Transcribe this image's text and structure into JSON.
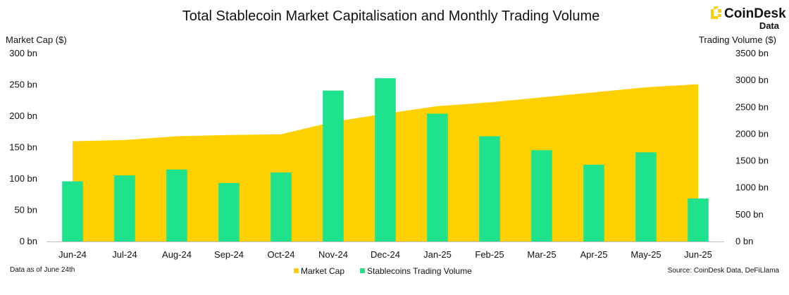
{
  "chart_data": {
    "type": "bar",
    "title": "Total Stablecoin Market Capitalisation and Monthly Trading Volume",
    "categories": [
      "Jun-24",
      "Jul-24",
      "Aug-24",
      "Sep-24",
      "Oct-24",
      "Nov-24",
      "Dec-24",
      "Jan-25",
      "Feb-25",
      "Mar-25",
      "Apr-25",
      "May-25",
      "Jun-25"
    ],
    "y_left": {
      "label": "Market Cap ($)",
      "ylim": [
        0,
        300
      ],
      "ticks": [
        "0 bn",
        "50 bn",
        "100 bn",
        "150 bn",
        "200 bn",
        "250 bn",
        "300 bn"
      ]
    },
    "y_right": {
      "label": "Trading Volume ($)",
      "ylim": [
        0,
        3500
      ],
      "ticks": [
        "0 bn",
        "500 bn",
        "1000 bn",
        "1500 bn",
        "2000 bn",
        "2500 bn",
        "3000 bn",
        "3500 bn"
      ]
    },
    "series": [
      {
        "name": "Market Cap",
        "type": "area",
        "axis": "left",
        "color": "#FFD000",
        "values": [
          160,
          162,
          168,
          170,
          171,
          191,
          204,
          216,
          222,
          230,
          238,
          246,
          251
        ]
      },
      {
        "name": "Stablecoins Trading Volume",
        "type": "bar",
        "axis": "right",
        "color": "#1EE38C",
        "values": [
          1120,
          1230,
          1340,
          1090,
          1285,
          2810,
          3040,
          2380,
          1960,
          1700,
          1430,
          1660,
          800
        ]
      }
    ],
    "grid": false,
    "legend_position": "bottom-center"
  },
  "notes": {
    "data_as_of": "Data as of June 24th",
    "source": "Source: CoinDesk Data, DeFiLlama"
  },
  "brand": {
    "name": "CoinDesk",
    "sub": "Data",
    "accent": "#FFD000",
    "icon": "coindesk-logo-icon"
  }
}
